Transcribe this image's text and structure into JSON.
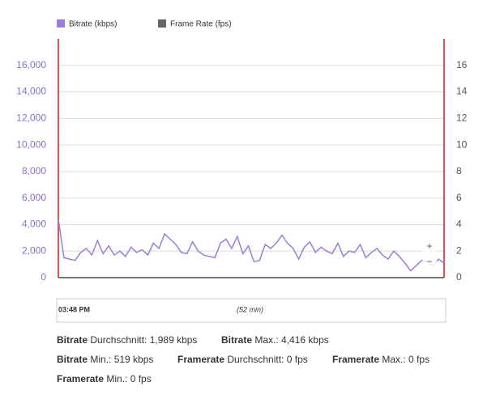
{
  "chart_data": {
    "type": "line",
    "ylim": [
      0,
      18000
    ],
    "yticks": [
      0,
      {
        "value": 2000,
        "label": "2,000"
      },
      {
        "value": 4000,
        "label": "4,000"
      },
      {
        "value": 6000,
        "label": "6,000"
      },
      {
        "value": 8000,
        "label": "8,000"
      },
      {
        "value": 10000,
        "label": "10,000"
      },
      {
        "value": 12000,
        "label": "12,000"
      },
      {
        "value": 14000,
        "label": "14,000"
      },
      {
        "value": 16000,
        "label": "16,000"
      }
    ],
    "y2lim": [
      0,
      18
    ],
    "y2ticks": [
      0,
      2,
      4,
      6,
      8,
      10,
      12,
      14,
      16
    ],
    "grid": true,
    "series": [
      {
        "name": "Bitrate (kbps)",
        "color": "#9b7ed6",
        "values": [
          4416,
          1500,
          1400,
          1300,
          1900,
          2200,
          1700,
          2800,
          1800,
          2400,
          1700,
          2000,
          1600,
          2300,
          1900,
          2100,
          1700,
          2600,
          2200,
          3300,
          2900,
          2500,
          1900,
          1800,
          2700,
          2000,
          1700,
          1600,
          1500,
          2600,
          2900,
          2200,
          3100,
          1800,
          2400,
          1200,
          1300,
          2500,
          2200,
          2600,
          3200,
          2600,
          2200,
          1400,
          2300,
          2700,
          1900,
          2300,
          2000,
          1800,
          2600,
          1600,
          2000,
          1900,
          2500,
          1500,
          1900,
          2200,
          1700,
          1400,
          2000,
          1600,
          1100,
          519,
          900,
          1300,
          1200,
          900,
          1400,
          1100
        ]
      },
      {
        "name": "Frame Rate (fps)",
        "color": "#666666",
        "axis": "y2",
        "values": [
          0,
          0,
          0,
          0,
          0,
          0,
          0,
          0,
          0,
          0,
          0,
          0,
          0,
          0,
          0,
          0,
          0,
          0,
          0,
          0,
          0,
          0,
          0,
          0,
          0,
          0,
          0,
          0,
          0,
          0,
          0,
          0,
          0,
          0,
          0,
          0,
          0,
          0,
          0,
          0,
          0,
          0,
          0,
          0,
          0,
          0,
          0,
          0,
          0,
          0,
          0,
          0,
          0,
          0,
          0,
          0,
          0,
          0,
          0,
          0,
          0,
          0,
          0,
          0,
          0,
          0,
          0,
          0,
          0,
          0
        ]
      }
    ]
  },
  "zoom": [
    "+",
    "−"
  ],
  "navigator": {
    "start": "03:48 PM",
    "duration": "(52 min)"
  },
  "stats": [
    {
      "label": "Bitrate",
      "text": "Durchschnitt: 1,989 kbps"
    },
    {
      "label": "Bitrate",
      "text": "Max.: 4,416 kbps"
    },
    {
      "label": "Bitrate",
      "text": "Min.: 519 kbps"
    },
    {
      "label": "Framerate",
      "text": "Durchschnitt: 0 fps"
    },
    {
      "label": "Framerate",
      "text": "Max.: 0 fps"
    },
    {
      "label": "Framerate",
      "text": "Min.: 0 fps"
    }
  ]
}
